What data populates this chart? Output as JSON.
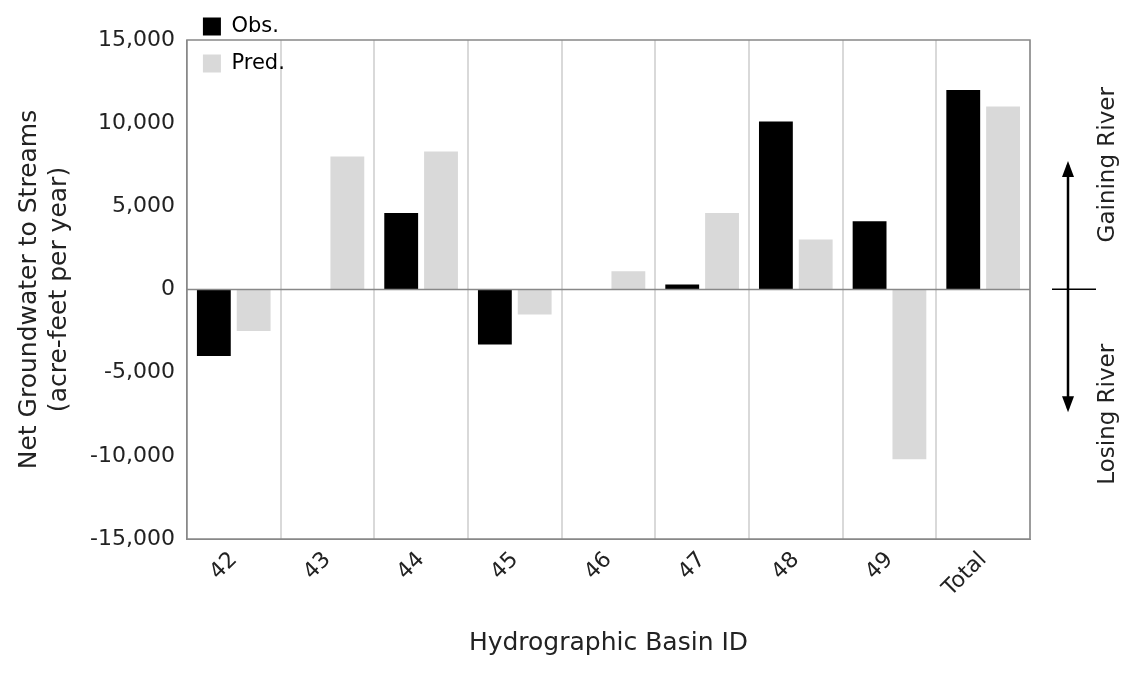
{
  "chart_data": {
    "type": "bar",
    "xlabel": "Hydrographic Basin ID",
    "ylabel": "Net Groundwater to Streams\n(acre-feet per year)",
    "categories": [
      "42",
      "43",
      "44",
      "45",
      "46",
      "47",
      "48",
      "49",
      "Total"
    ],
    "series": [
      {
        "name": "Obs.",
        "color": "#000000",
        "values": [
          -4000,
          0,
          4600,
          -3300,
          0,
          300,
          10100,
          4100,
          12000
        ]
      },
      {
        "name": "Pred.",
        "color": "#d9d9d9",
        "values": [
          -2500,
          8000,
          8300,
          -1500,
          1100,
          4600,
          3000,
          -10200,
          11000
        ]
      }
    ],
    "ylim": [
      -15000,
      15000
    ],
    "yticks": [
      {
        "value": -15000,
        "label": "-15,000"
      },
      {
        "value": -10000,
        "label": "-10,000"
      },
      {
        "value": -5000,
        "label": "-5,000"
      },
      0,
      {
        "value": 5000,
        "label": "5,000"
      },
      {
        "value": 10000,
        "label": "10,000"
      },
      {
        "value": 15000,
        "label": "15,000"
      }
    ],
    "grid": "x",
    "legend": "top left",
    "annotations": [
      "Gaining River",
      "Losing River"
    ]
  }
}
